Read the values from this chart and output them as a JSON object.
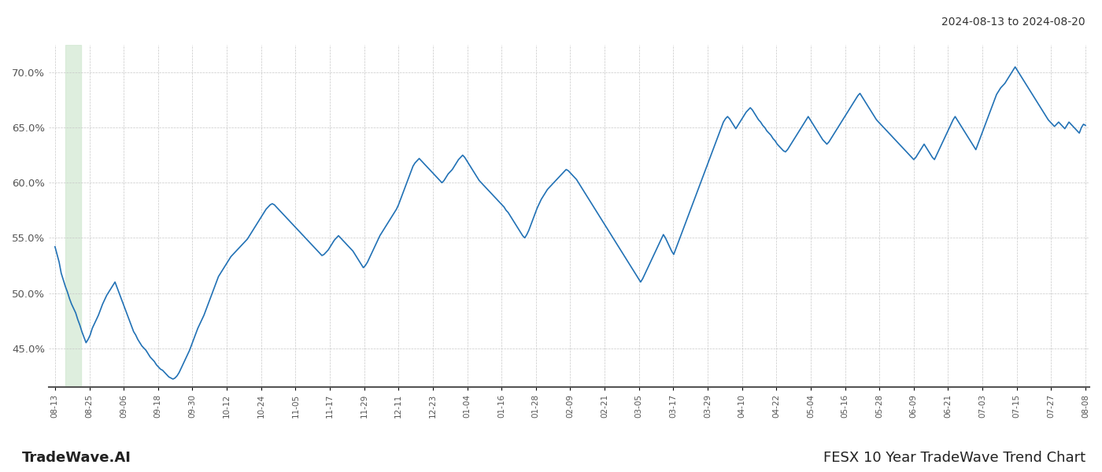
{
  "title_top_right": "2024-08-13 to 2024-08-20",
  "title_bottom_right": "FESX 10 Year TradeWave Trend Chart",
  "title_bottom_left": "TradeWave.AI",
  "line_color": "#2171b5",
  "line_width": 1.2,
  "background_color": "#ffffff",
  "grid_color": "#c8c8c8",
  "highlight_color": "#d6ead6",
  "ylim": [
    41.5,
    72.5
  ],
  "yticks": [
    45.0,
    50.0,
    55.0,
    60.0,
    65.0,
    70.0
  ],
  "x_tick_labels": [
    "08-13",
    "08-25",
    "09-06",
    "09-18",
    "09-30",
    "10-12",
    "10-24",
    "11-05",
    "11-17",
    "11-29",
    "12-11",
    "12-23",
    "01-04",
    "01-16",
    "01-28",
    "02-09",
    "02-21",
    "03-05",
    "03-17",
    "03-29",
    "04-10",
    "04-22",
    "05-04",
    "05-16",
    "05-28",
    "06-09",
    "06-21",
    "07-03",
    "07-15",
    "07-27",
    "08-08"
  ],
  "y_values": [
    54.2,
    53.5,
    52.8,
    51.8,
    51.2,
    50.6,
    50.1,
    49.5,
    49.0,
    48.6,
    48.2,
    47.6,
    47.1,
    46.5,
    46.0,
    45.5,
    45.8,
    46.2,
    46.8,
    47.2,
    47.6,
    48.0,
    48.5,
    49.0,
    49.4,
    49.8,
    50.1,
    50.4,
    50.7,
    51.0,
    50.5,
    50.0,
    49.5,
    49.0,
    48.5,
    48.0,
    47.5,
    47.0,
    46.5,
    46.2,
    45.8,
    45.5,
    45.2,
    45.0,
    44.8,
    44.5,
    44.2,
    44.0,
    43.8,
    43.5,
    43.3,
    43.1,
    43.0,
    42.8,
    42.6,
    42.4,
    42.3,
    42.2,
    42.3,
    42.5,
    42.8,
    43.2,
    43.6,
    44.0,
    44.4,
    44.8,
    45.3,
    45.8,
    46.3,
    46.8,
    47.2,
    47.6,
    48.0,
    48.5,
    49.0,
    49.5,
    50.0,
    50.5,
    51.0,
    51.5,
    51.8,
    52.1,
    52.4,
    52.7,
    53.0,
    53.3,
    53.5,
    53.7,
    53.9,
    54.1,
    54.3,
    54.5,
    54.7,
    54.9,
    55.2,
    55.5,
    55.8,
    56.1,
    56.4,
    56.7,
    57.0,
    57.3,
    57.6,
    57.8,
    58.0,
    58.1,
    58.0,
    57.8,
    57.6,
    57.4,
    57.2,
    57.0,
    56.8,
    56.6,
    56.4,
    56.2,
    56.0,
    55.8,
    55.6,
    55.4,
    55.2,
    55.0,
    54.8,
    54.6,
    54.4,
    54.2,
    54.0,
    53.8,
    53.6,
    53.4,
    53.5,
    53.7,
    53.9,
    54.2,
    54.5,
    54.8,
    55.0,
    55.2,
    55.0,
    54.8,
    54.6,
    54.4,
    54.2,
    54.0,
    53.8,
    53.5,
    53.2,
    52.9,
    52.6,
    52.3,
    52.5,
    52.8,
    53.2,
    53.6,
    54.0,
    54.4,
    54.8,
    55.2,
    55.5,
    55.8,
    56.1,
    56.4,
    56.7,
    57.0,
    57.3,
    57.6,
    58.0,
    58.5,
    59.0,
    59.5,
    60.0,
    60.5,
    61.0,
    61.5,
    61.8,
    62.0,
    62.2,
    62.0,
    61.8,
    61.6,
    61.4,
    61.2,
    61.0,
    60.8,
    60.6,
    60.4,
    60.2,
    60.0,
    60.2,
    60.5,
    60.8,
    61.0,
    61.2,
    61.5,
    61.8,
    62.1,
    62.3,
    62.5,
    62.3,
    62.0,
    61.7,
    61.4,
    61.1,
    60.8,
    60.5,
    60.2,
    60.0,
    59.8,
    59.6,
    59.4,
    59.2,
    59.0,
    58.8,
    58.6,
    58.4,
    58.2,
    58.0,
    57.8,
    57.5,
    57.3,
    57.0,
    56.7,
    56.4,
    56.1,
    55.8,
    55.5,
    55.2,
    55.0,
    55.3,
    55.7,
    56.2,
    56.7,
    57.2,
    57.7,
    58.1,
    58.5,
    58.8,
    59.1,
    59.4,
    59.6,
    59.8,
    60.0,
    60.2,
    60.4,
    60.6,
    60.8,
    61.0,
    61.2,
    61.1,
    60.9,
    60.7,
    60.5,
    60.3,
    60.0,
    59.7,
    59.4,
    59.1,
    58.8,
    58.5,
    58.2,
    57.9,
    57.6,
    57.3,
    57.0,
    56.7,
    56.4,
    56.1,
    55.8,
    55.5,
    55.2,
    54.9,
    54.6,
    54.3,
    54.0,
    53.7,
    53.4,
    53.1,
    52.8,
    52.5,
    52.2,
    51.9,
    51.6,
    51.3,
    51.0,
    51.3,
    51.7,
    52.1,
    52.5,
    52.9,
    53.3,
    53.7,
    54.1,
    54.5,
    54.9,
    55.3,
    55.0,
    54.6,
    54.2,
    53.8,
    53.5,
    54.0,
    54.5,
    55.0,
    55.5,
    56.0,
    56.5,
    57.0,
    57.5,
    58.0,
    58.5,
    59.0,
    59.5,
    60.0,
    60.5,
    61.0,
    61.5,
    62.0,
    62.5,
    63.0,
    63.5,
    64.0,
    64.5,
    65.0,
    65.5,
    65.8,
    66.0,
    65.8,
    65.5,
    65.2,
    64.9,
    65.2,
    65.5,
    65.8,
    66.1,
    66.4,
    66.6,
    66.8,
    66.6,
    66.3,
    66.0,
    65.7,
    65.5,
    65.2,
    65.0,
    64.7,
    64.5,
    64.3,
    64.0,
    63.8,
    63.5,
    63.3,
    63.1,
    62.9,
    62.8,
    63.0,
    63.3,
    63.6,
    63.9,
    64.2,
    64.5,
    64.8,
    65.1,
    65.4,
    65.7,
    66.0,
    65.7,
    65.4,
    65.1,
    64.8,
    64.5,
    64.2,
    63.9,
    63.7,
    63.5,
    63.7,
    64.0,
    64.3,
    64.6,
    64.9,
    65.2,
    65.5,
    65.8,
    66.1,
    66.4,
    66.7,
    67.0,
    67.3,
    67.6,
    67.9,
    68.1,
    67.8,
    67.5,
    67.2,
    66.9,
    66.6,
    66.3,
    66.0,
    65.7,
    65.5,
    65.3,
    65.1,
    64.9,
    64.7,
    64.5,
    64.3,
    64.1,
    63.9,
    63.7,
    63.5,
    63.3,
    63.1,
    62.9,
    62.7,
    62.5,
    62.3,
    62.1,
    62.3,
    62.6,
    62.9,
    63.2,
    63.5,
    63.2,
    62.9,
    62.6,
    62.3,
    62.1,
    62.5,
    62.9,
    63.3,
    63.7,
    64.1,
    64.5,
    64.9,
    65.3,
    65.7,
    66.0,
    65.7,
    65.4,
    65.1,
    64.8,
    64.5,
    64.2,
    63.9,
    63.6,
    63.3,
    63.0,
    63.5,
    64.0,
    64.5,
    65.0,
    65.5,
    66.0,
    66.5,
    67.0,
    67.5,
    68.0,
    68.3,
    68.6,
    68.8,
    69.0,
    69.3,
    69.6,
    69.9,
    70.2,
    70.5,
    70.2,
    69.9,
    69.6,
    69.3,
    69.0,
    68.7,
    68.4,
    68.1,
    67.8,
    67.5,
    67.2,
    66.9,
    66.6,
    66.3,
    66.0,
    65.7,
    65.5,
    65.3,
    65.1,
    65.3,
    65.5,
    65.3,
    65.1,
    64.9,
    65.2,
    65.5,
    65.3,
    65.1,
    64.9,
    64.7,
    64.5,
    65.0,
    65.3,
    65.2
  ]
}
